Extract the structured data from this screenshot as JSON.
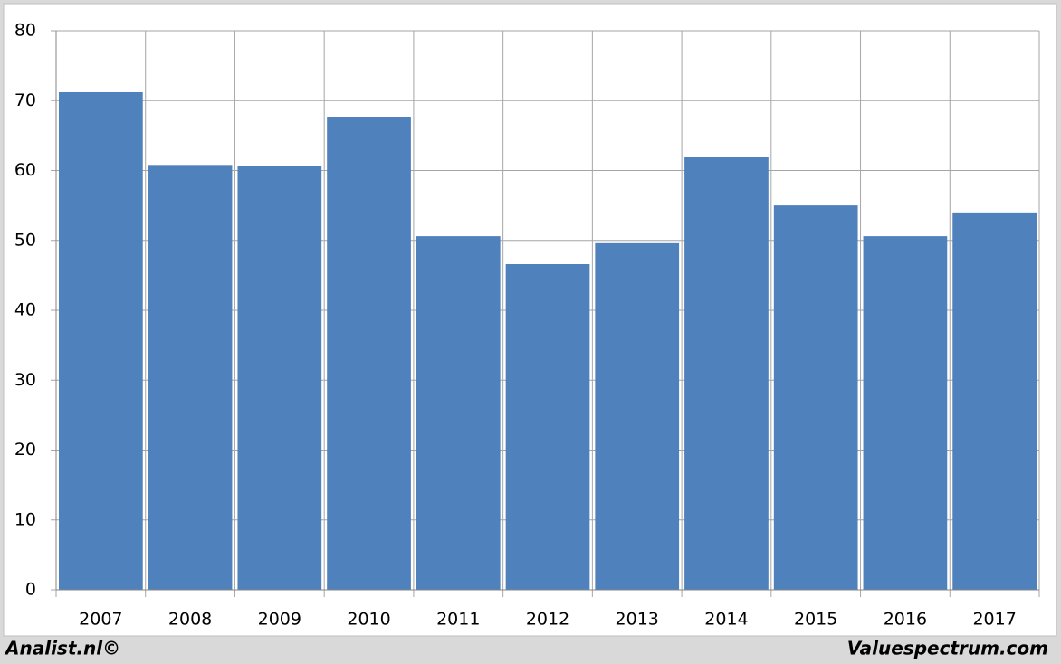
{
  "chart_data": {
    "type": "bar",
    "categories": [
      "2007",
      "2008",
      "2009",
      "2010",
      "2011",
      "2012",
      "2013",
      "2014",
      "2015",
      "2016",
      "2017"
    ],
    "values": [
      71.2,
      60.8,
      60.7,
      67.7,
      50.6,
      46.6,
      49.6,
      62.0,
      55.0,
      50.6,
      54.0
    ],
    "color": "#4f81bd",
    "ylim": [
      0,
      80
    ],
    "yticks": [
      0,
      10,
      20,
      30,
      40,
      50,
      60,
      70,
      80
    ],
    "grid": true,
    "footer_left": "Analist.nl©",
    "footer_right": "Valuespectrum.com"
  }
}
